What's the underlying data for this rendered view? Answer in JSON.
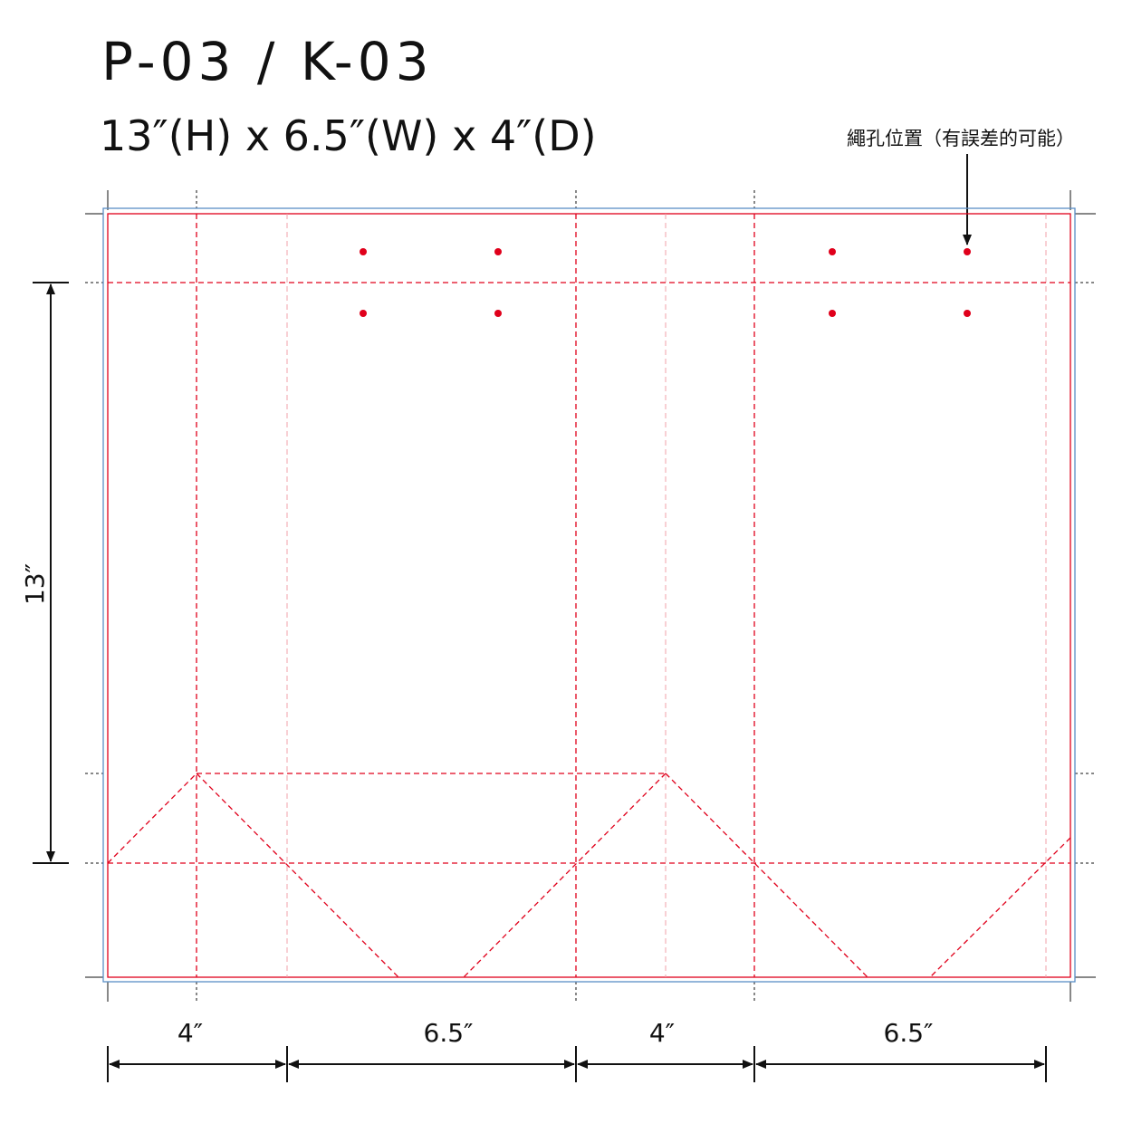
{
  "header": {
    "title": "P-03 / K-03",
    "subtitle": "13″(H) x 6.5″(W) x 4″(D)"
  },
  "annotation": "繩孔位置（有誤差的可能）",
  "dimensions": {
    "widths": [
      "4″",
      "6.5″",
      "4″",
      "6.5″"
    ],
    "height": "13″"
  }
}
